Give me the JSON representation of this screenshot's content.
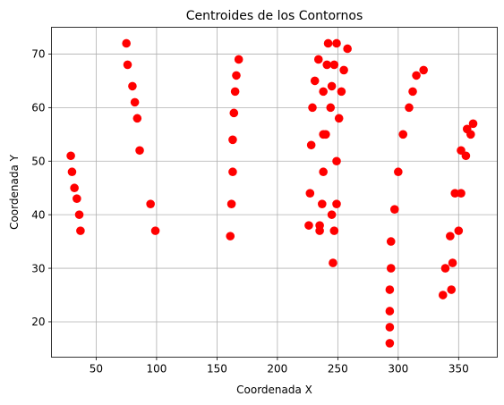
{
  "chart_data": {
    "type": "scatter",
    "title": "Centroides de los Contornos",
    "xlabel": "Coordenada X",
    "ylabel": "Coordenada Y",
    "xlim": [
      13,
      382
    ],
    "ylim": [
      13.4,
      75
    ],
    "x_ticks": [
      50,
      100,
      150,
      200,
      250,
      300,
      350
    ],
    "y_ticks": [
      20,
      30,
      40,
      50,
      60,
      70
    ],
    "x_tick_labels": [
      "50",
      "100",
      "150",
      "200",
      "250",
      "300",
      "350"
    ],
    "y_tick_labels": [
      "20",
      "30",
      "40",
      "50",
      "60",
      "70"
    ],
    "grid": true,
    "point_color": "#ff0000",
    "points": [
      {
        "x": 29,
        "y": 51
      },
      {
        "x": 30,
        "y": 48
      },
      {
        "x": 32,
        "y": 45
      },
      {
        "x": 34,
        "y": 43
      },
      {
        "x": 36,
        "y": 40
      },
      {
        "x": 37,
        "y": 37
      },
      {
        "x": 75,
        "y": 72
      },
      {
        "x": 76,
        "y": 68
      },
      {
        "x": 80,
        "y": 64
      },
      {
        "x": 82,
        "y": 61
      },
      {
        "x": 84,
        "y": 58
      },
      {
        "x": 86,
        "y": 52
      },
      {
        "x": 95,
        "y": 42
      },
      {
        "x": 99,
        "y": 37
      },
      {
        "x": 161,
        "y": 36
      },
      {
        "x": 162,
        "y": 42
      },
      {
        "x": 163,
        "y": 48
      },
      {
        "x": 163,
        "y": 54
      },
      {
        "x": 164,
        "y": 59
      },
      {
        "x": 165,
        "y": 63
      },
      {
        "x": 166,
        "y": 66
      },
      {
        "x": 168,
        "y": 69
      },
      {
        "x": 226,
        "y": 38
      },
      {
        "x": 227,
        "y": 44
      },
      {
        "x": 228,
        "y": 53
      },
      {
        "x": 229,
        "y": 60
      },
      {
        "x": 231,
        "y": 65
      },
      {
        "x": 234,
        "y": 69
      },
      {
        "x": 235,
        "y": 37
      },
      {
        "x": 235,
        "y": 38
      },
      {
        "x": 237,
        "y": 42
      },
      {
        "x": 238,
        "y": 48
      },
      {
        "x": 238,
        "y": 55
      },
      {
        "x": 238,
        "y": 63
      },
      {
        "x": 240,
        "y": 55
      },
      {
        "x": 241,
        "y": 68
      },
      {
        "x": 242,
        "y": 72
      },
      {
        "x": 244,
        "y": 60
      },
      {
        "x": 245,
        "y": 64
      },
      {
        "x": 245,
        "y": 40
      },
      {
        "x": 246,
        "y": 31
      },
      {
        "x": 247,
        "y": 37
      },
      {
        "x": 247,
        "y": 68
      },
      {
        "x": 249,
        "y": 50
      },
      {
        "x": 249,
        "y": 42
      },
      {
        "x": 249,
        "y": 72
      },
      {
        "x": 251,
        "y": 58
      },
      {
        "x": 253,
        "y": 63
      },
      {
        "x": 255,
        "y": 67
      },
      {
        "x": 258,
        "y": 71
      },
      {
        "x": 293,
        "y": 16
      },
      {
        "x": 293,
        "y": 19
      },
      {
        "x": 293,
        "y": 22
      },
      {
        "x": 293,
        "y": 26
      },
      {
        "x": 294,
        "y": 30
      },
      {
        "x": 294,
        "y": 35
      },
      {
        "x": 297,
        "y": 41
      },
      {
        "x": 300,
        "y": 48
      },
      {
        "x": 304,
        "y": 55
      },
      {
        "x": 309,
        "y": 60
      },
      {
        "x": 312,
        "y": 63
      },
      {
        "x": 315,
        "y": 66
      },
      {
        "x": 321,
        "y": 67
      },
      {
        "x": 337,
        "y": 25
      },
      {
        "x": 339,
        "y": 30
      },
      {
        "x": 343,
        "y": 36
      },
      {
        "x": 344,
        "y": 26
      },
      {
        "x": 345,
        "y": 31
      },
      {
        "x": 347,
        "y": 44
      },
      {
        "x": 350,
        "y": 37
      },
      {
        "x": 352,
        "y": 44
      },
      {
        "x": 352,
        "y": 52
      },
      {
        "x": 356,
        "y": 51
      },
      {
        "x": 357,
        "y": 56
      },
      {
        "x": 360,
        "y": 55
      },
      {
        "x": 362,
        "y": 57
      }
    ]
  }
}
